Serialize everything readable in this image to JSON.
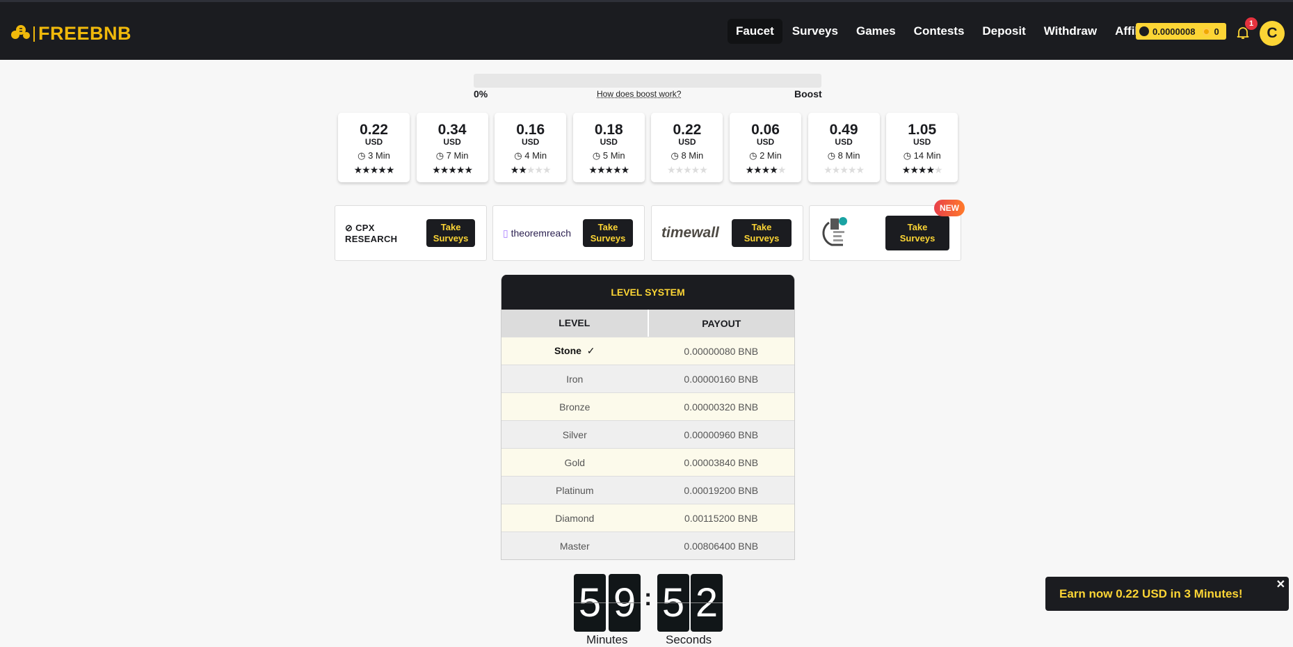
{
  "brand": {
    "name": "FREEBNB",
    "color": "#f0b90b"
  },
  "nav": [
    {
      "label": "Faucet",
      "active": true
    },
    {
      "label": "Surveys"
    },
    {
      "label": "Games"
    },
    {
      "label": "Contests"
    },
    {
      "label": "Deposit"
    },
    {
      "label": "Withdraw"
    },
    {
      "label": "Affiliates"
    }
  ],
  "balance": {
    "bnb": "0.0000008",
    "coins": "0"
  },
  "notifications": {
    "count": "1"
  },
  "user": {
    "initial": "C"
  },
  "boost": {
    "percent_label": "0%",
    "value": 0,
    "help": "How does boost work?",
    "label": "Boost"
  },
  "offers": [
    {
      "amount": "0.22",
      "currency": "USD",
      "time": "3 Min",
      "stars": 5
    },
    {
      "amount": "0.34",
      "currency": "USD",
      "time": "7 Min",
      "stars": 5
    },
    {
      "amount": "0.16",
      "currency": "USD",
      "time": "4 Min",
      "stars": 2
    },
    {
      "amount": "0.18",
      "currency": "USD",
      "time": "5 Min",
      "stars": 5
    },
    {
      "amount": "0.22",
      "currency": "USD",
      "time": "8 Min",
      "stars": 0
    },
    {
      "amount": "0.06",
      "currency": "USD",
      "time": "2 Min",
      "stars": 4
    },
    {
      "amount": "0.49",
      "currency": "USD",
      "time": "8 Min",
      "stars": 0
    },
    {
      "amount": "1.05",
      "currency": "USD",
      "time": "14 Min",
      "stars": 4
    }
  ],
  "providers": [
    {
      "name": "CPX RESEARCH",
      "button": "Take Surveys"
    },
    {
      "name": "theoremreach",
      "button": "Take Surveys"
    },
    {
      "name": "timewall",
      "button": "Take Surveys"
    },
    {
      "name": "",
      "button": "Take Surveys",
      "badge": "NEW"
    }
  ],
  "levels": {
    "title": "LEVEL SYSTEM",
    "headers": [
      "LEVEL",
      "PAYOUT"
    ],
    "rows": [
      {
        "level": "Stone",
        "payout": "0.00000080 BNB",
        "current": true
      },
      {
        "level": "Iron",
        "payout": "0.00000160 BNB"
      },
      {
        "level": "Bronze",
        "payout": "0.00000320 BNB"
      },
      {
        "level": "Silver",
        "payout": "0.00000960 BNB"
      },
      {
        "level": "Gold",
        "payout": "0.00003840 BNB"
      },
      {
        "level": "Platinum",
        "payout": "0.00019200 BNB"
      },
      {
        "level": "Diamond",
        "payout": "0.00115200 BNB"
      },
      {
        "level": "Master",
        "payout": "0.00806400 BNB"
      }
    ]
  },
  "timer": {
    "digits": [
      "5",
      "9",
      "5",
      "2"
    ],
    "minutes_label": "Minutes",
    "seconds_label": "Seconds"
  },
  "toast": {
    "text": "Earn now 0.22 USD in 3 Minutes!",
    "close": "✕"
  }
}
